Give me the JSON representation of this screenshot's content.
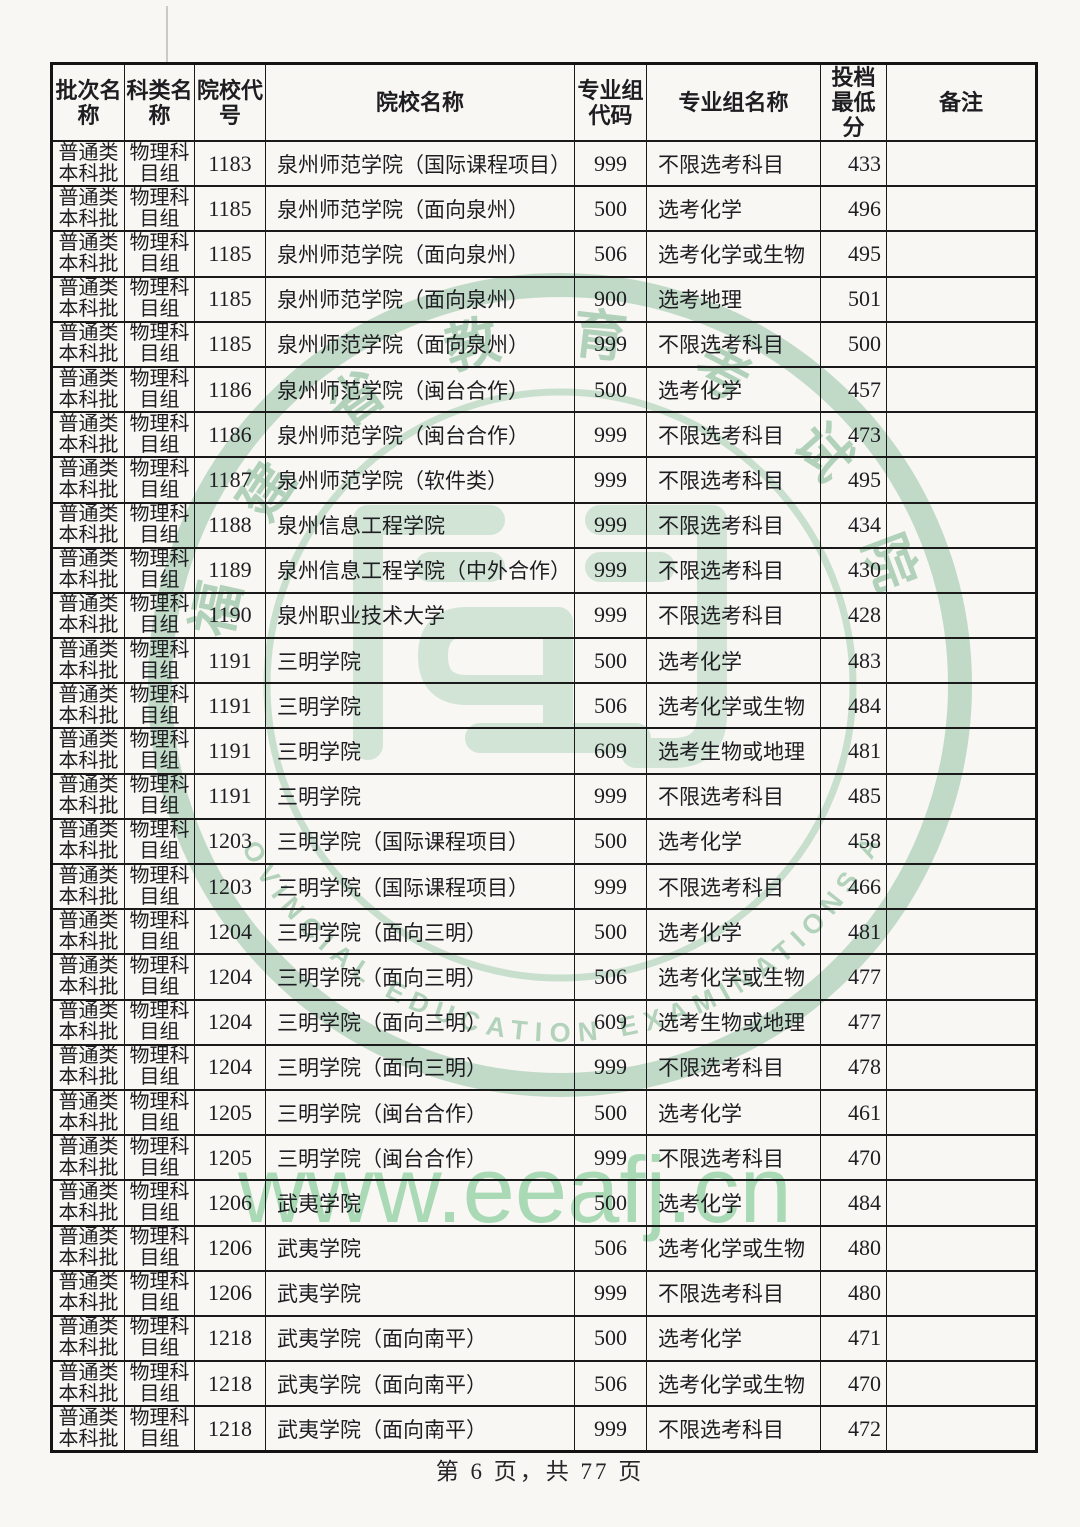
{
  "watermark": {
    "url_text": "www.eeafj.cn",
    "seal_top_text": "福建省教育考试院",
    "seal_bottom_text": "FUJIAN PROVINCIAL EDUCATION EXAMINATIONS AUTHORITY",
    "seal_color": "#b7d5bf",
    "url_color": "#7cc891"
  },
  "table": {
    "headers": [
      "批次名称",
      "科类名称",
      "院校代号",
      "院校名称",
      "专业组代码",
      "专业组名称",
      "投档最低分",
      "备注"
    ],
    "rows": [
      {
        "batch": "普通类本科批",
        "subject": "物理科目组",
        "school_code": "1183",
        "school_name": "泉州师范学院（国际课程项目）",
        "group_code": "999",
        "group_name": "不限选考科目",
        "min_score": "433",
        "remark": ""
      },
      {
        "batch": "普通类本科批",
        "subject": "物理科目组",
        "school_code": "1185",
        "school_name": "泉州师范学院（面向泉州）",
        "group_code": "500",
        "group_name": "选考化学",
        "min_score": "496",
        "remark": ""
      },
      {
        "batch": "普通类本科批",
        "subject": "物理科目组",
        "school_code": "1185",
        "school_name": "泉州师范学院（面向泉州）",
        "group_code": "506",
        "group_name": "选考化学或生物",
        "min_score": "495",
        "remark": ""
      },
      {
        "batch": "普通类本科批",
        "subject": "物理科目组",
        "school_code": "1185",
        "school_name": "泉州师范学院（面向泉州）",
        "group_code": "900",
        "group_name": "选考地理",
        "min_score": "501",
        "remark": ""
      },
      {
        "batch": "普通类本科批",
        "subject": "物理科目组",
        "school_code": "1185",
        "school_name": "泉州师范学院（面向泉州）",
        "group_code": "999",
        "group_name": "不限选考科目",
        "min_score": "500",
        "remark": ""
      },
      {
        "batch": "普通类本科批",
        "subject": "物理科目组",
        "school_code": "1186",
        "school_name": "泉州师范学院（闽台合作）",
        "group_code": "500",
        "group_name": "选考化学",
        "min_score": "457",
        "remark": ""
      },
      {
        "batch": "普通类本科批",
        "subject": "物理科目组",
        "school_code": "1186",
        "school_name": "泉州师范学院（闽台合作）",
        "group_code": "999",
        "group_name": "不限选考科目",
        "min_score": "473",
        "remark": ""
      },
      {
        "batch": "普通类本科批",
        "subject": "物理科目组",
        "school_code": "1187",
        "school_name": "泉州师范学院（软件类）",
        "group_code": "999",
        "group_name": "不限选考科目",
        "min_score": "495",
        "remark": ""
      },
      {
        "batch": "普通类本科批",
        "subject": "物理科目组",
        "school_code": "1188",
        "school_name": "泉州信息工程学院",
        "group_code": "999",
        "group_name": "不限选考科目",
        "min_score": "434",
        "remark": ""
      },
      {
        "batch": "普通类本科批",
        "subject": "物理科目组",
        "school_code": "1189",
        "school_name": "泉州信息工程学院（中外合作）",
        "group_code": "999",
        "group_name": "不限选考科目",
        "min_score": "430",
        "remark": ""
      },
      {
        "batch": "普通类本科批",
        "subject": "物理科目组",
        "school_code": "1190",
        "school_name": "泉州职业技术大学",
        "group_code": "999",
        "group_name": "不限选考科目",
        "min_score": "428",
        "remark": ""
      },
      {
        "batch": "普通类本科批",
        "subject": "物理科目组",
        "school_code": "1191",
        "school_name": "三明学院",
        "group_code": "500",
        "group_name": "选考化学",
        "min_score": "483",
        "remark": ""
      },
      {
        "batch": "普通类本科批",
        "subject": "物理科目组",
        "school_code": "1191",
        "school_name": "三明学院",
        "group_code": "506",
        "group_name": "选考化学或生物",
        "min_score": "484",
        "remark": ""
      },
      {
        "batch": "普通类本科批",
        "subject": "物理科目组",
        "school_code": "1191",
        "school_name": "三明学院",
        "group_code": "609",
        "group_name": "选考生物或地理",
        "min_score": "481",
        "remark": ""
      },
      {
        "batch": "普通类本科批",
        "subject": "物理科目组",
        "school_code": "1191",
        "school_name": "三明学院",
        "group_code": "999",
        "group_name": "不限选考科目",
        "min_score": "485",
        "remark": ""
      },
      {
        "batch": "普通类本科批",
        "subject": "物理科目组",
        "school_code": "1203",
        "school_name": "三明学院（国际课程项目）",
        "group_code": "500",
        "group_name": "选考化学",
        "min_score": "458",
        "remark": ""
      },
      {
        "batch": "普通类本科批",
        "subject": "物理科目组",
        "school_code": "1203",
        "school_name": "三明学院（国际课程项目）",
        "group_code": "999",
        "group_name": "不限选考科目",
        "min_score": "466",
        "remark": ""
      },
      {
        "batch": "普通类本科批",
        "subject": "物理科目组",
        "school_code": "1204",
        "school_name": "三明学院（面向三明）",
        "group_code": "500",
        "group_name": "选考化学",
        "min_score": "481",
        "remark": ""
      },
      {
        "batch": "普通类本科批",
        "subject": "物理科目组",
        "school_code": "1204",
        "school_name": "三明学院（面向三明）",
        "group_code": "506",
        "group_name": "选考化学或生物",
        "min_score": "477",
        "remark": ""
      },
      {
        "batch": "普通类本科批",
        "subject": "物理科目组",
        "school_code": "1204",
        "school_name": "三明学院（面向三明）",
        "group_code": "609",
        "group_name": "选考生物或地理",
        "min_score": "477",
        "remark": ""
      },
      {
        "batch": "普通类本科批",
        "subject": "物理科目组",
        "school_code": "1204",
        "school_name": "三明学院（面向三明）",
        "group_code": "999",
        "group_name": "不限选考科目",
        "min_score": "478",
        "remark": ""
      },
      {
        "batch": "普通类本科批",
        "subject": "物理科目组",
        "school_code": "1205",
        "school_name": "三明学院（闽台合作）",
        "group_code": "500",
        "group_name": "选考化学",
        "min_score": "461",
        "remark": ""
      },
      {
        "batch": "普通类本科批",
        "subject": "物理科目组",
        "school_code": "1205",
        "school_name": "三明学院（闽台合作）",
        "group_code": "999",
        "group_name": "不限选考科目",
        "min_score": "470",
        "remark": ""
      },
      {
        "batch": "普通类本科批",
        "subject": "物理科目组",
        "school_code": "1206",
        "school_name": "武夷学院",
        "group_code": "500",
        "group_name": "选考化学",
        "min_score": "484",
        "remark": ""
      },
      {
        "batch": "普通类本科批",
        "subject": "物理科目组",
        "school_code": "1206",
        "school_name": "武夷学院",
        "group_code": "506",
        "group_name": "选考化学或生物",
        "min_score": "480",
        "remark": ""
      },
      {
        "batch": "普通类本科批",
        "subject": "物理科目组",
        "school_code": "1206",
        "school_name": "武夷学院",
        "group_code": "999",
        "group_name": "不限选考科目",
        "min_score": "480",
        "remark": ""
      },
      {
        "batch": "普通类本科批",
        "subject": "物理科目组",
        "school_code": "1218",
        "school_name": "武夷学院（面向南平）",
        "group_code": "500",
        "group_name": "选考化学",
        "min_score": "471",
        "remark": ""
      },
      {
        "batch": "普通类本科批",
        "subject": "物理科目组",
        "school_code": "1218",
        "school_name": "武夷学院（面向南平）",
        "group_code": "506",
        "group_name": "选考化学或生物",
        "min_score": "470",
        "remark": ""
      },
      {
        "batch": "普通类本科批",
        "subject": "物理科目组",
        "school_code": "1218",
        "school_name": "武夷学院（面向南平）",
        "group_code": "999",
        "group_name": "不限选考科目",
        "min_score": "472",
        "remark": ""
      }
    ]
  },
  "footer": {
    "page_text": "第 6 页，共 77 页"
  }
}
